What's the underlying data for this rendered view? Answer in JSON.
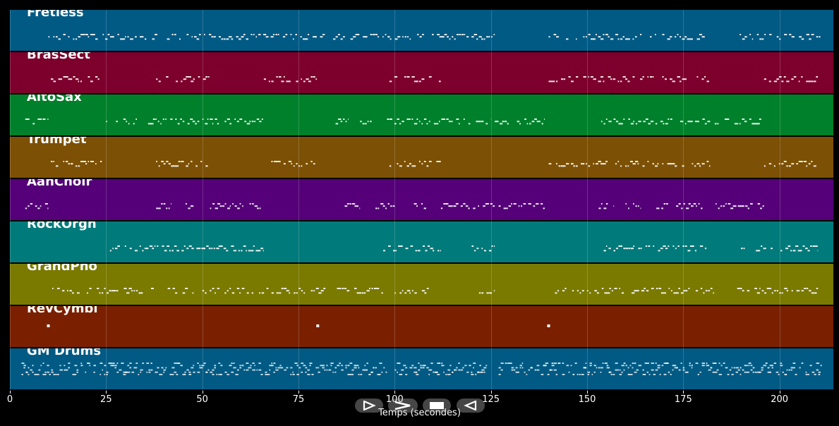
{
  "tracks": [
    {
      "name": "Fretless",
      "color": "#005a84",
      "ranges": [
        [
          10,
          82
        ],
        [
          84,
          126
        ],
        [
          140,
          181
        ],
        [
          189,
          211
        ]
      ]
    },
    {
      "name": "BrasSect",
      "color": "#7d002c",
      "ranges": [
        [
          10,
          24
        ],
        [
          38,
          52
        ],
        [
          66,
          80
        ],
        [
          98,
          112
        ],
        [
          140,
          182
        ],
        [
          196,
          210
        ]
      ]
    },
    {
      "name": "AltoSax",
      "color": "#00802a",
      "ranges": [
        [
          4,
          10
        ],
        [
          25,
          66
        ],
        [
          84,
          88
        ],
        [
          91,
          94
        ],
        [
          98,
          125
        ],
        [
          126,
          139
        ],
        [
          153,
          196
        ]
      ]
    },
    {
      "name": "Trumpet",
      "color": "#7c5005",
      "ranges": [
        [
          10,
          24
        ],
        [
          38,
          52
        ],
        [
          66,
          80
        ],
        [
          98,
          112
        ],
        [
          140,
          182
        ],
        [
          196,
          210
        ]
      ]
    },
    {
      "name": "AahChoir",
      "color": "#550078",
      "ranges": [
        [
          4,
          10
        ],
        [
          38,
          42
        ],
        [
          45,
          48
        ],
        [
          52,
          66
        ],
        [
          87,
          91
        ],
        [
          95,
          100
        ],
        [
          105,
          109
        ],
        [
          112,
          126
        ],
        [
          127,
          139
        ],
        [
          153,
          157
        ],
        [
          160,
          164
        ],
        [
          168,
          196
        ]
      ]
    },
    {
      "name": "RockOrgn",
      "color": "#007a7a",
      "ranges": [
        [
          26,
          66
        ],
        [
          97,
          112
        ],
        [
          120,
          126
        ],
        [
          153,
          181
        ],
        [
          190,
          210
        ]
      ]
    },
    {
      "name": "GrandPno",
      "color": "#7a7a00",
      "ranges": [
        [
          11,
          38
        ],
        [
          41,
          48
        ],
        [
          50,
          82
        ],
        [
          85,
          97
        ],
        [
          100,
          110
        ],
        [
          120,
          126
        ],
        [
          141,
          183
        ],
        [
          189,
          210
        ]
      ]
    },
    {
      "name": "RevCymbl",
      "color": "#7a2000",
      "ranges": [],
      "dots": [
        10,
        80,
        140
      ]
    },
    {
      "name": "GM Drums",
      "color": "#005a84",
      "ranges": [
        [
          3,
          98
        ],
        [
          100,
          124
        ],
        [
          127,
          211
        ]
      ],
      "dense": true
    }
  ],
  "axis": {
    "xmin": 0,
    "xmax": 214,
    "ticks": [
      0,
      25,
      50,
      75,
      100,
      125,
      150,
      175,
      200
    ],
    "tick_labels": [
      "0",
      "25",
      "50",
      "75",
      "100",
      "125",
      "150",
      "175",
      "200"
    ],
    "label": "Temps (secondes)"
  },
  "controls": [
    {
      "name": "play-outline-button",
      "icon": "play-outline-icon"
    },
    {
      "name": "fast-forward-button",
      "icon": "chevron-right-icon"
    },
    {
      "name": "stop-button",
      "icon": "stop-icon"
    },
    {
      "name": "rewind-button",
      "icon": "rewind-outline-icon"
    }
  ]
}
